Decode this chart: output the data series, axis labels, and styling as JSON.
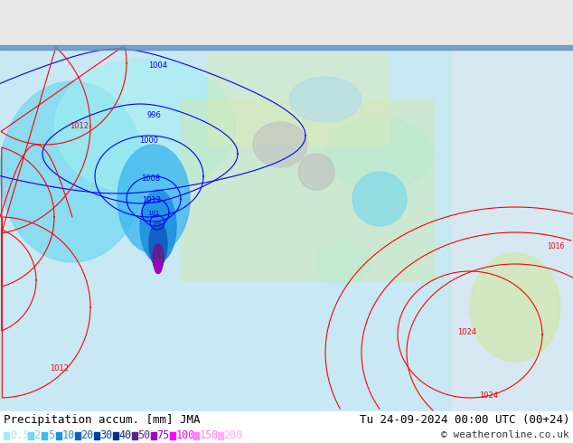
{
  "title_left": "Precipitation accum. [mm] JMA",
  "title_right": "Tu 24-09-2024 00:00 UTC (00+24)",
  "copyright": "© weatheronline.co.uk",
  "legend_values": [
    "0.5",
    "2",
    "5",
    "10",
    "20",
    "30",
    "40",
    "50",
    "75",
    "100",
    "150",
    "200"
  ],
  "legend_colors": [
    "#a0f0f0",
    "#70d8f0",
    "#40b8f0",
    "#2090e0",
    "#1060c0",
    "#0040a0",
    "#003080",
    "#602090",
    "#a000c0",
    "#ff00ff",
    "#ff80ff",
    "#ffb0ff"
  ],
  "bg_color": "#e8e8e8",
  "map_bg": "#d0e8f0",
  "bottom_bar_color": "#ffffff",
  "text_color": "#000000",
  "title_fontsize": 9,
  "legend_fontsize": 8.5,
  "copyright_fontsize": 8
}
